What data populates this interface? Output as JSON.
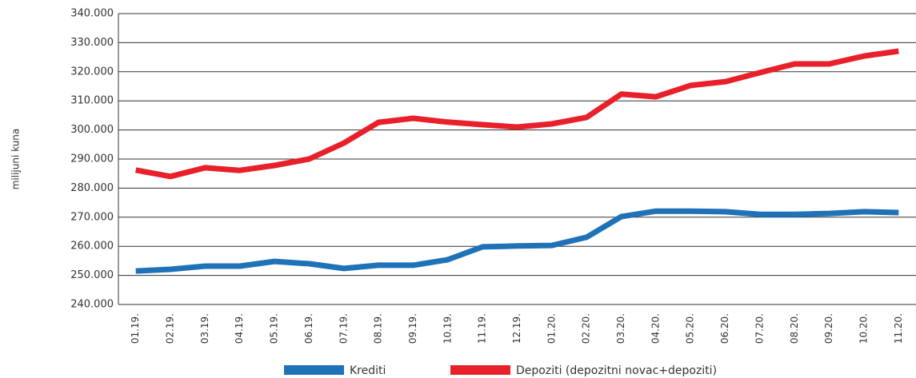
{
  "chart_data": {
    "type": "line",
    "y_label": "milijuni kuna",
    "categories": [
      "01.19.",
      "02.19.",
      "03.19.",
      "04.19.",
      "05.19.",
      "06.19.",
      "07.19.",
      "08.19.",
      "09.19.",
      "10.19.",
      "11.19.",
      "12.19.",
      "01.20.",
      "02.20.",
      "03.20.",
      "04.20.",
      "05.20.",
      "06.20.",
      "07.20.",
      "08.20.",
      "09.20.",
      "10.20.",
      "11.20."
    ],
    "series": [
      {
        "name": "Krediti",
        "color": "#1f72b8",
        "values": [
          251500,
          252100,
          253200,
          253200,
          254800,
          254000,
          252400,
          253500,
          253500,
          255400,
          259800,
          260100,
          260300,
          263100,
          270200,
          272100,
          272100,
          271900,
          271000,
          271000,
          271300,
          271900,
          271600
        ]
      },
      {
        "name": "Depoziti (depozitni novac+depoziti)",
        "color": "#e8202a",
        "values": [
          286200,
          284000,
          287000,
          286100,
          287800,
          290000,
          295500,
          302600,
          304000,
          302700,
          301800,
          301000,
          302100,
          304300,
          312300,
          311400,
          315300,
          316600,
          319700,
          322700,
          322700,
          325400,
          327100
        ]
      }
    ],
    "ylim": [
      240000,
      340000
    ],
    "yticks": [
      {
        "value": 240000,
        "label": "240.000"
      },
      {
        "value": 250000,
        "label": "250.000"
      },
      {
        "value": 260000,
        "label": "260.000"
      },
      {
        "value": 270000,
        "label": "270.000"
      },
      {
        "value": 280000,
        "label": "280.000"
      },
      {
        "value": 290000,
        "label": "290.000"
      },
      {
        "value": 300000,
        "label": "300.000"
      },
      {
        "value": 310000,
        "label": "310.000"
      },
      {
        "value": 320000,
        "label": "320.000"
      },
      {
        "value": 330000,
        "label": "330.000"
      },
      {
        "value": 340000,
        "label": "340.000"
      }
    ],
    "grid": true
  }
}
